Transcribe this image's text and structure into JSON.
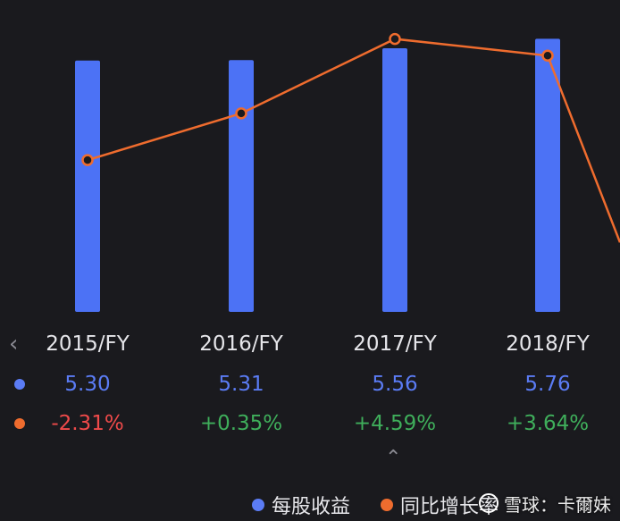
{
  "chart_data": {
    "type": "bar+line",
    "categories": [
      "2015/FY",
      "2016/FY",
      "2017/FY",
      "2018/FY"
    ],
    "series": [
      {
        "name": "每股收益",
        "type": "bar",
        "values": [
          5.3,
          5.31,
          5.56,
          5.76
        ],
        "display": [
          "5.30",
          "5.31",
          "5.56",
          "5.76"
        ],
        "color": "#4c72f5"
      },
      {
        "name": "同比增长率",
        "type": "line",
        "values": [
          -2.31,
          0.35,
          4.59,
          3.64
        ],
        "display": [
          "-2.31%",
          "+0.35%",
          "+4.59%",
          "+3.64%"
        ],
        "color": "#ef6c2e",
        "unit": "%"
      }
    ],
    "next_growth_partial": -7.0,
    "bar_ylim": [
      0,
      6.2
    ],
    "line_ylim": [
      -10.5,
      6.3
    ],
    "grid": false,
    "legend_position": "bottom"
  },
  "colors": {
    "background": "#1a1a1e",
    "bar": "#4c72f5",
    "line": "#ef6c2e",
    "positive": "#3fae5b",
    "negative": "#ef4a4a",
    "axis_text": "#e6e6ea"
  },
  "icons": {
    "prev": "chevron-left-icon",
    "expand": "chevron-up-icon"
  },
  "watermark": {
    "text": "雪球：卡爾妹"
  }
}
